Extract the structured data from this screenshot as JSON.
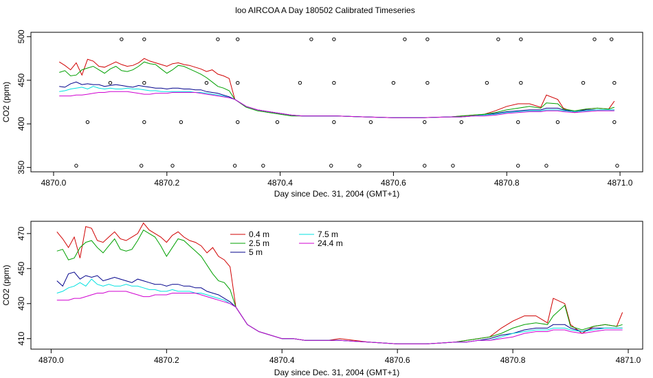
{
  "title": "loo AIRCOA A  Day 180502  Calibrated Timeseries",
  "chart_data": [
    {
      "type": "scatter+line",
      "xlabel": "Day since Dec. 31, 2004 (GMT+1)",
      "ylabel": "CO2 (ppm)",
      "xlim": [
        4869.96,
        4871.04
      ],
      "ylim": [
        345,
        505
      ],
      "xticks": [
        "4870.0",
        "4870.2",
        "4870.4",
        "4870.6",
        "4870.8",
        "4871.0"
      ],
      "yticks": [
        "350",
        "400",
        "450",
        "500"
      ],
      "markers": {
        "x": [
          4870.04,
          4870.06,
          4870.1,
          4870.12,
          4870.155,
          4870.16,
          4870.16,
          4870.16,
          4870.21,
          4870.225,
          4870.27,
          4870.29,
          4870.32,
          4870.325,
          4870.325,
          4870.325,
          4870.37,
          4870.395,
          4870.435,
          4870.455,
          4870.49,
          4870.495,
          4870.495,
          4870.495,
          4870.54,
          4870.56,
          4870.6,
          4870.62,
          4870.655,
          4870.655,
          4870.66,
          4870.66,
          4870.705,
          4870.72,
          4870.765,
          4870.785,
          4870.82,
          4870.82,
          4870.825,
          4870.825,
          4870.87,
          4870.89,
          4870.935,
          4870.955,
          4870.985,
          4870.99,
          4870.99,
          4870.995
        ],
        "y": [
          352,
          402,
          447,
          497,
          352,
          402,
          447,
          497,
          352,
          402,
          447,
          497,
          352,
          402,
          447,
          497,
          352,
          402,
          447,
          497,
          352,
          402,
          447,
          497,
          352,
          402,
          447,
          497,
          352,
          402,
          447,
          497,
          352,
          402,
          447,
          497,
          352,
          402,
          447,
          497,
          352,
          402,
          447,
          497,
          497,
          447,
          402,
          352
        ]
      },
      "x": [
        4870.01,
        4870.02,
        4870.03,
        4870.04,
        4870.05,
        4870.06,
        4870.07,
        4870.08,
        4870.09,
        4870.1,
        4870.11,
        4870.12,
        4870.13,
        4870.14,
        4870.15,
        4870.16,
        4870.17,
        4870.18,
        4870.19,
        4870.2,
        4870.21,
        4870.22,
        4870.23,
        4870.24,
        4870.25,
        4870.26,
        4870.27,
        4870.28,
        4870.29,
        4870.3,
        4870.31,
        4870.32,
        4870.34,
        4870.36,
        4870.38,
        4870.4,
        4870.42,
        4870.44,
        4870.46,
        4870.48,
        4870.5,
        4870.55,
        4870.6,
        4870.65,
        4870.7,
        4870.72,
        4870.74,
        4870.76,
        4870.78,
        4870.8,
        4870.82,
        4870.84,
        4870.86,
        4870.87,
        4870.89,
        4870.9,
        4870.92,
        4870.94,
        4870.96,
        4870.98,
        4870.99
      ],
      "series": [
        {
          "color": "#d00000",
          "values": [
            471,
            467,
            462,
            470,
            456,
            474,
            472,
            466,
            465,
            468,
            471,
            468,
            466,
            467,
            470,
            475,
            472,
            470,
            468,
            466,
            469,
            470,
            468,
            467,
            465,
            463,
            460,
            462,
            457,
            455,
            452,
            428,
            420,
            416,
            414,
            412,
            410,
            409,
            409,
            409,
            409,
            408,
            407,
            407,
            408,
            409,
            410,
            411,
            415,
            420,
            423,
            423,
            419,
            433,
            428,
            418,
            413,
            417,
            418,
            417,
            426
          ]
        },
        {
          "color": "#00a000",
          "values": [
            459,
            461,
            455,
            456,
            462,
            464,
            466,
            462,
            458,
            463,
            466,
            461,
            460,
            462,
            466,
            471,
            469,
            468,
            463,
            458,
            462,
            467,
            466,
            463,
            460,
            457,
            453,
            448,
            443,
            441,
            438,
            428,
            419,
            415,
            413,
            411,
            409,
            409,
            409,
            409,
            409,
            408,
            407,
            407,
            408,
            409,
            410,
            411,
            413,
            416,
            418,
            420,
            418,
            424,
            423,
            417,
            415,
            417,
            418,
            417,
            419
          ]
        },
        {
          "color": "#00008b",
          "values": [
            443,
            442,
            446,
            448,
            445,
            446,
            445,
            445,
            443,
            444,
            445,
            444,
            443,
            442,
            444,
            443,
            442,
            441,
            441,
            440,
            441,
            441,
            440,
            440,
            439,
            439,
            437,
            436,
            435,
            433,
            431,
            428,
            420,
            416,
            414,
            412,
            410,
            409,
            409,
            409,
            409,
            408,
            407,
            407,
            408,
            408,
            409,
            410,
            412,
            414,
            415,
            416,
            416,
            418,
            418,
            416,
            414,
            416,
            416,
            416,
            416
          ]
        },
        {
          "color": "#00e0e0",
          "values": [
            437,
            438,
            440,
            441,
            442,
            440,
            443,
            441,
            440,
            441,
            440,
            440,
            441,
            440,
            440,
            439,
            438,
            438,
            437,
            437,
            437,
            437,
            437,
            437,
            436,
            436,
            435,
            434,
            433,
            432,
            430,
            428,
            420,
            416,
            414,
            412,
            410,
            409,
            409,
            409,
            409,
            408,
            407,
            407,
            408,
            408,
            409,
            410,
            411,
            413,
            414,
            415,
            415,
            416,
            416,
            415,
            414,
            415,
            416,
            416,
            416
          ]
        },
        {
          "color": "#d000d0",
          "values": [
            432,
            432,
            432,
            433,
            433,
            434,
            435,
            436,
            436,
            437,
            437,
            437,
            437,
            436,
            435,
            434,
            434,
            435,
            435,
            435,
            436,
            436,
            436,
            436,
            436,
            435,
            434,
            433,
            432,
            431,
            430,
            428,
            420,
            416,
            414,
            412,
            410,
            409,
            409,
            409,
            409,
            408,
            407,
            407,
            408,
            408,
            409,
            409,
            410,
            412,
            413,
            414,
            414,
            415,
            415,
            414,
            413,
            414,
            415,
            415,
            415
          ]
        }
      ]
    },
    {
      "type": "line",
      "xlabel": "Day since Dec. 31, 2004 (GMT+1)",
      "ylabel": "CO2 (ppm)",
      "xlim": [
        4869.965,
        4871.025
      ],
      "ylim": [
        404,
        477
      ],
      "xticks": [
        "4870.0",
        "4870.2",
        "4870.4",
        "4870.6",
        "4870.8",
        "4871.0"
      ],
      "yticks": [
        "410",
        "430",
        "450",
        "470"
      ],
      "legend": [
        "0.4 m",
        "2.5 m",
        "5 m",
        "7.5 m",
        "24.4 m"
      ],
      "legend_colors": [
        "#d00000",
        "#00a000",
        "#00008b",
        "#00e0e0",
        "#d000d0"
      ],
      "x": [
        4870.01,
        4870.02,
        4870.03,
        4870.04,
        4870.05,
        4870.06,
        4870.07,
        4870.08,
        4870.09,
        4870.1,
        4870.11,
        4870.12,
        4870.13,
        4870.14,
        4870.15,
        4870.16,
        4870.17,
        4870.18,
        4870.19,
        4870.2,
        4870.21,
        4870.22,
        4870.23,
        4870.24,
        4870.25,
        4870.26,
        4870.27,
        4870.28,
        4870.29,
        4870.3,
        4870.31,
        4870.32,
        4870.34,
        4870.36,
        4870.38,
        4870.4,
        4870.42,
        4870.44,
        4870.46,
        4870.48,
        4870.5,
        4870.55,
        4870.6,
        4870.65,
        4870.7,
        4870.72,
        4870.74,
        4870.76,
        4870.78,
        4870.8,
        4870.82,
        4870.84,
        4870.86,
        4870.87,
        4870.89,
        4870.9,
        4870.92,
        4870.94,
        4870.96,
        4870.98,
        4870.99
      ],
      "series": [
        {
          "name": "0.4 m",
          "color": "#d00000",
          "values": [
            471,
            467,
            462,
            468,
            456,
            474,
            473,
            466,
            465,
            468,
            471,
            467,
            466,
            468,
            470,
            476,
            472,
            470,
            468,
            465,
            469,
            471,
            468,
            466,
            465,
            463,
            459,
            462,
            457,
            455,
            451,
            428,
            418,
            414,
            412,
            410,
            410,
            409,
            409,
            409,
            410,
            408,
            407,
            407,
            408,
            409,
            410,
            411,
            416,
            420,
            423,
            423,
            419,
            433,
            430,
            418,
            413,
            417,
            418,
            417,
            425
          ]
        },
        {
          "name": "2.5 m",
          "color": "#00a000",
          "values": [
            460,
            461,
            455,
            456,
            462,
            465,
            466,
            462,
            459,
            463,
            467,
            461,
            460,
            461,
            466,
            472,
            470,
            468,
            463,
            457,
            462,
            467,
            466,
            463,
            460,
            457,
            452,
            447,
            443,
            442,
            438,
            428,
            418,
            414,
            412,
            410,
            410,
            409,
            409,
            409,
            409,
            408,
            407,
            407,
            408,
            409,
            410,
            411,
            413,
            416,
            418,
            419,
            418,
            423,
            429,
            417,
            415,
            417,
            418,
            417,
            418
          ]
        },
        {
          "name": "5 m",
          "color": "#00008b",
          "values": [
            443,
            440,
            447,
            448,
            444,
            446,
            445,
            446,
            443,
            444,
            445,
            444,
            443,
            442,
            444,
            443,
            442,
            441,
            441,
            440,
            441,
            441,
            440,
            440,
            439,
            439,
            437,
            436,
            435,
            433,
            431,
            428,
            418,
            414,
            412,
            410,
            410,
            409,
            409,
            409,
            409,
            408,
            407,
            407,
            408,
            408,
            409,
            410,
            412,
            413,
            415,
            416,
            416,
            418,
            418,
            416,
            414,
            416,
            416,
            416,
            416
          ]
        },
        {
          "name": "7.5 m",
          "color": "#00e0e0",
          "values": [
            436,
            437,
            439,
            440,
            442,
            440,
            444,
            441,
            440,
            441,
            440,
            440,
            441,
            440,
            440,
            439,
            438,
            438,
            437,
            437,
            438,
            437,
            437,
            437,
            436,
            436,
            435,
            434,
            433,
            432,
            430,
            428,
            418,
            414,
            412,
            410,
            410,
            409,
            409,
            409,
            409,
            408,
            407,
            407,
            408,
            408,
            409,
            409,
            411,
            413,
            414,
            415,
            415,
            416,
            416,
            415,
            414,
            415,
            416,
            416,
            416
          ]
        },
        {
          "name": "24.4 m",
          "color": "#d000d0",
          "values": [
            432,
            432,
            432,
            433,
            433,
            434,
            435,
            436,
            436,
            437,
            437,
            437,
            437,
            436,
            435,
            434,
            434,
            435,
            435,
            435,
            436,
            436,
            436,
            436,
            436,
            435,
            434,
            433,
            432,
            431,
            430,
            428,
            418,
            414,
            412,
            410,
            410,
            409,
            409,
            409,
            409,
            408,
            407,
            407,
            408,
            408,
            409,
            409,
            410,
            411,
            413,
            414,
            414,
            415,
            415,
            414,
            413,
            414,
            415,
            415,
            415
          ]
        }
      ]
    }
  ]
}
